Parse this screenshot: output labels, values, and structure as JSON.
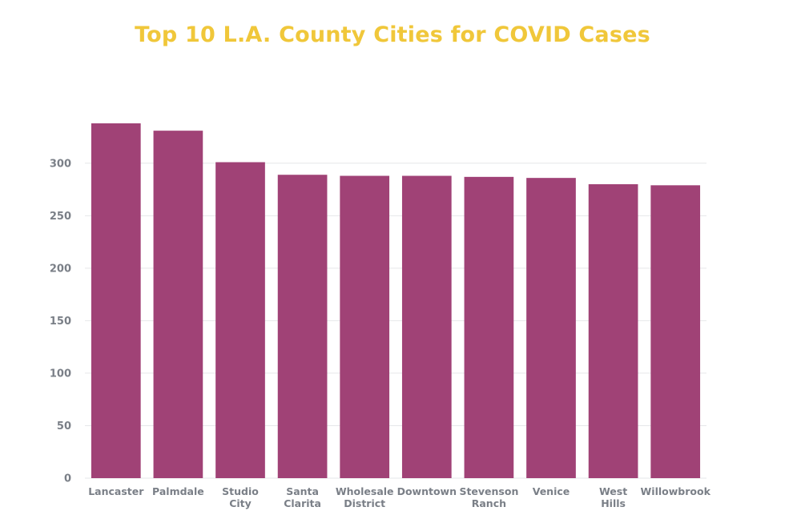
{
  "chart_data": {
    "type": "bar",
    "title": "Top 10 L.A. County Cities for COVID Cases",
    "xlabel": "",
    "ylabel": "",
    "categories": [
      [
        "Lancaster"
      ],
      [
        "Palmdale"
      ],
      [
        "Studio",
        "City"
      ],
      [
        "Santa",
        "Clarita"
      ],
      [
        "Wholesale",
        "District"
      ],
      [
        "Downtown"
      ],
      [
        "Stevenson",
        "Ranch"
      ],
      [
        "Venice"
      ],
      [
        "West",
        "Hills"
      ],
      [
        "Willowbrook"
      ]
    ],
    "values": [
      338,
      331,
      301,
      289,
      288,
      288,
      287,
      286,
      280,
      279
    ],
    "ylim": [
      0,
      338
    ],
    "yticks": [
      "0",
      "50",
      "100",
      "150",
      "200",
      "250",
      "300"
    ],
    "grid": true,
    "legend": "none",
    "colors": {
      "bar": "#a04276",
      "title": "#f0c73a",
      "grid": "#e6e7e9",
      "label": "#7a7f87"
    }
  }
}
